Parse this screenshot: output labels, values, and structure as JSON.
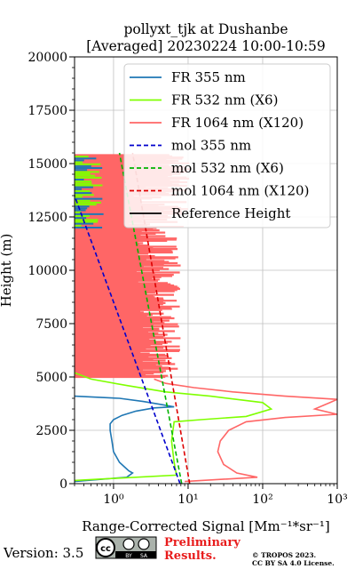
{
  "chart_data": {
    "type": "line",
    "title_line1": "pollyxt_tjk at Dushanbe",
    "title_line2": "[Averaged] 20230224 10:00-10:59",
    "xlabel": "Range-Corrected Signal [Mm⁻¹*sr⁻¹]",
    "ylabel": "Height (m)",
    "xscale": "log",
    "xlim": [
      0.3,
      1000
    ],
    "ylim": [
      0,
      20000
    ],
    "xticks": [
      1,
      10,
      100,
      1000
    ],
    "xtick_labels": [
      "10⁰",
      "10¹",
      "10²",
      "10³"
    ],
    "yticks": [
      0,
      2500,
      5000,
      7500,
      10000,
      12500,
      15000,
      17500,
      20000
    ],
    "ytick_labels": [
      "0",
      "2500",
      "5000",
      "7500",
      "10000",
      "12500",
      "15000",
      "17500",
      "20000"
    ],
    "grid": true,
    "legend_position": "top-right",
    "series": [
      {
        "name": "FR 355 nm",
        "color": "#1f77b4",
        "style": "solid",
        "points": [
          [
            0.3,
            100
          ],
          [
            1.5,
            300
          ],
          [
            1.8,
            500
          ],
          [
            1.6,
            600
          ],
          [
            1.2,
            1000
          ],
          [
            1.0,
            1500
          ],
          [
            0.95,
            2000
          ],
          [
            0.9,
            2500
          ],
          [
            0.9,
            2800
          ],
          [
            1.0,
            3000
          ],
          [
            1.3,
            3200
          ],
          [
            2.0,
            3400
          ],
          [
            3.5,
            3550
          ],
          [
            6.5,
            3600
          ],
          [
            4.5,
            3700
          ],
          [
            2.5,
            3850
          ],
          [
            1.2,
            4000
          ],
          [
            0.3,
            4100
          ]
        ]
      },
      {
        "name": "FR 532 nm (X6)",
        "color": "#7fff00",
        "style": "solid",
        "points": [
          [
            0.3,
            150
          ],
          [
            7.0,
            400
          ],
          [
            6.5,
            1000
          ],
          [
            6.0,
            2000
          ],
          [
            6.5,
            2900
          ],
          [
            15,
            3000
          ],
          [
            60,
            3150
          ],
          [
            130,
            3500
          ],
          [
            100,
            3800
          ],
          [
            20,
            4100
          ],
          [
            5,
            4300
          ],
          [
            1.5,
            4600
          ],
          [
            0.5,
            4900
          ],
          [
            0.3,
            5200
          ]
        ]
      },
      {
        "name": "FR 1064 nm (X120)",
        "color": "#ff6666",
        "style": "solid",
        "points": [
          [
            9,
            100
          ],
          [
            85,
            300
          ],
          [
            45,
            500
          ],
          [
            30,
            900
          ],
          [
            25,
            1500
          ],
          [
            27,
            2000
          ],
          [
            35,
            2500
          ],
          [
            60,
            2900
          ],
          [
            200,
            3100
          ],
          [
            1000,
            3250
          ],
          [
            500,
            3500
          ],
          [
            800,
            3800
          ],
          [
            1000,
            3950
          ],
          [
            200,
            4100
          ],
          [
            40,
            4300
          ],
          [
            12,
            4500
          ],
          [
            5,
            4700
          ],
          [
            3.5,
            4900
          ]
        ]
      },
      {
        "name": "mol 355 nm",
        "color": "#0000cc",
        "style": "dashed",
        "points": [
          [
            7.8,
            0
          ],
          [
            0.3,
            13500
          ]
        ]
      },
      {
        "name": "mol 532 nm (X6)",
        "color": "#00b300",
        "style": "dashed",
        "points": [
          [
            8.2,
            0
          ],
          [
            1.2,
            15500
          ]
        ]
      },
      {
        "name": "mol 1064 nm (X120)",
        "color": "#dd0000",
        "style": "dashed",
        "points": [
          [
            10.5,
            0
          ],
          [
            1.8,
            15500
          ]
        ]
      },
      {
        "name": "Reference Height",
        "color": "#000000",
        "style": "solid",
        "points": []
      }
    ]
  },
  "footer": {
    "version": "Version: 3.5",
    "preliminary_line1": "Preliminary",
    "preliminary_line2": "Results.",
    "license_line1": "© TROPOS 2023.",
    "license_line2": "CC BY SA 4.0 License.",
    "badge_by": "BY",
    "badge_sa": "SA",
    "cc_logo_text": "cc",
    "preliminary_color": "#e81c1c"
  }
}
